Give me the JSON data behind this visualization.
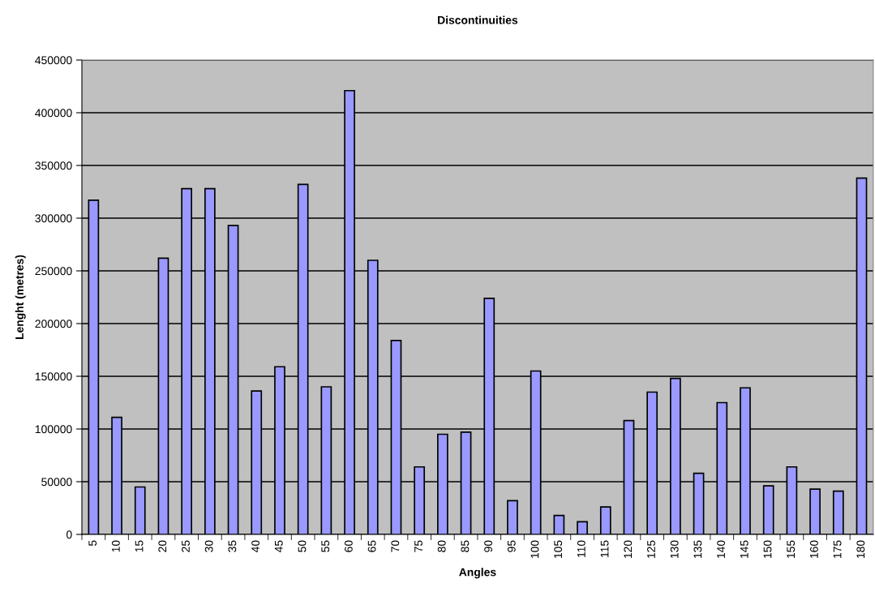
{
  "chart_data": {
    "type": "bar",
    "title": "Discontinuities",
    "xlabel": "Angles",
    "ylabel": "Lenght (metres)",
    "categories": [
      "5",
      "10",
      "15",
      "20",
      "25",
      "30",
      "35",
      "40",
      "45",
      "50",
      "55",
      "60",
      "65",
      "70",
      "75",
      "80",
      "85",
      "90",
      "95",
      "100",
      "105",
      "110",
      "115",
      "120",
      "125",
      "130",
      "135",
      "140",
      "145",
      "150",
      "155",
      "160",
      "175",
      "180"
    ],
    "values": [
      317000,
      111000,
      45000,
      262000,
      328000,
      328000,
      293000,
      136000,
      159000,
      332000,
      140000,
      421000,
      260000,
      184000,
      64000,
      95000,
      97000,
      224000,
      32000,
      155000,
      18000,
      12000,
      26000,
      108000,
      135000,
      148000,
      58000,
      125000,
      139000,
      46000,
      64000,
      43000,
      41000,
      338000
    ],
    "color": "#9999ff",
    "ylim": [
      0,
      450000
    ],
    "yticks": [
      0,
      50000,
      100000,
      150000,
      200000,
      250000,
      300000,
      350000,
      400000,
      450000
    ],
    "grid": "y",
    "legend": false
  }
}
